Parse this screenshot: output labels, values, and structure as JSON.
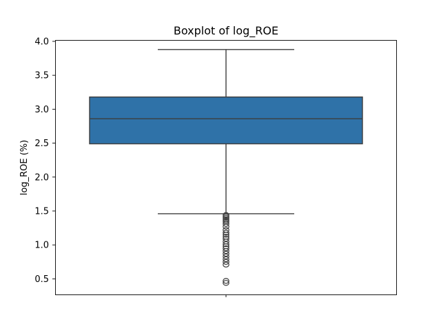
{
  "chart_data": {
    "type": "box",
    "title": "Boxplot of log_ROE",
    "xlabel": "",
    "ylabel": "log_ROE (%)",
    "ylim": [
      0.27,
      4.02
    ],
    "yticks": [
      0.5,
      1.0,
      1.5,
      2.0,
      2.5,
      3.0,
      3.5,
      4.0
    ],
    "ytick_labels": [
      "0.5",
      "1.0",
      "1.5",
      "2.0",
      "2.5",
      "3.0",
      "3.5",
      "4.0"
    ],
    "grid": false,
    "legend": "none",
    "box": {
      "whisker_low": 1.46,
      "q1": 2.49,
      "median": 2.86,
      "q3": 3.18,
      "whisker_high": 3.88,
      "outliers": [
        1.44,
        1.42,
        1.4,
        1.38,
        1.36,
        1.34,
        1.31,
        1.27,
        1.22,
        1.18,
        1.15,
        1.12,
        1.09,
        1.05,
        1.01,
        0.98,
        0.95,
        0.91,
        0.87,
        0.83,
        0.79,
        0.75,
        0.71,
        0.47,
        0.44
      ]
    },
    "colors": {
      "box_fill": "#2f72a8",
      "line": "#3d3d3d"
    }
  }
}
